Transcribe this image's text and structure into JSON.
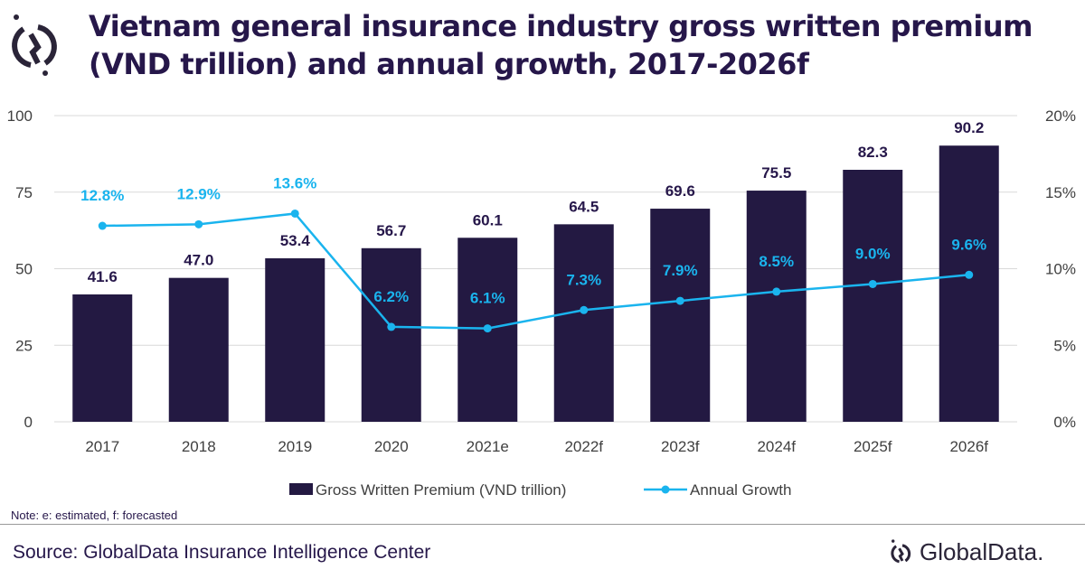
{
  "title": "Vietnam general insurance industry gross written premium (VND trillion) and annual growth, 2017-2026f",
  "note": "Note: e: estimated, f: forecasted",
  "source": "Source: GlobalData Insurance Intelligence Center",
  "brand": "GlobalData.",
  "colors": {
    "bar": "#231942",
    "line": "#1ab4ee",
    "title": "#26174a"
  },
  "chart_data": {
    "type": "bar+line",
    "categories": [
      "2017",
      "2018",
      "2019",
      "2020",
      "2021e",
      "2022f",
      "2023f",
      "2024f",
      "2025f",
      "2026f"
    ],
    "series": [
      {
        "name": "Gross Written Premium (VND trillion)",
        "type": "bar",
        "axis": "left",
        "values": [
          41.6,
          47.0,
          53.4,
          56.7,
          60.1,
          64.5,
          69.6,
          75.5,
          82.3,
          90.2
        ],
        "labels": [
          "41.6",
          "47.0",
          "53.4",
          "56.7",
          "60.1",
          "64.5",
          "69.6",
          "75.5",
          "82.3",
          "90.2"
        ]
      },
      {
        "name": "Annual Growth",
        "type": "line",
        "axis": "right",
        "values": [
          12.8,
          12.9,
          13.6,
          6.2,
          6.1,
          7.3,
          7.9,
          8.5,
          9.0,
          9.6
        ],
        "labels": [
          "12.8%",
          "12.9%",
          "13.6%",
          "6.2%",
          "6.1%",
          "7.3%",
          "7.9%",
          "8.5%",
          "9.0%",
          "9.6%"
        ]
      }
    ],
    "y_left": {
      "range": [
        0,
        100
      ],
      "ticks": [
        "0",
        "25",
        "50",
        "75",
        "100"
      ]
    },
    "y_right": {
      "range": [
        0,
        20
      ],
      "ticks": [
        "0%",
        "5%",
        "10%",
        "15%",
        "20%"
      ]
    },
    "grid": true,
    "legend": "bottom"
  }
}
